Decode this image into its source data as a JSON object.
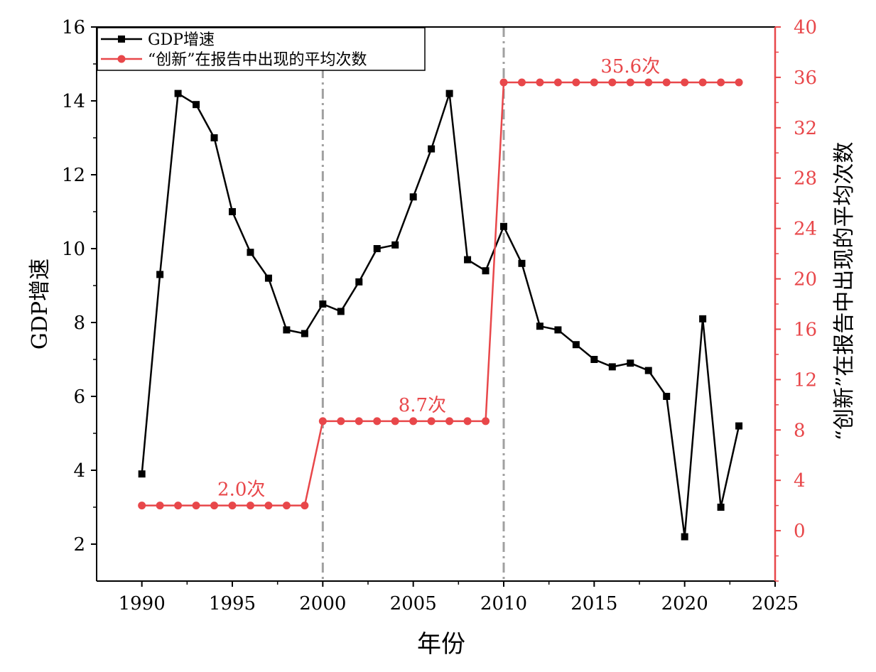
{
  "chart_data": {
    "type": "line",
    "x_axis": {
      "label": "年份",
      "range": [
        1987.5,
        2025
      ],
      "ticks": [
        1990,
        1995,
        2000,
        2005,
        2010,
        2015,
        2020,
        2025
      ]
    },
    "y_left": {
      "label": "GDP增速",
      "range": [
        1,
        16
      ],
      "ticks": [
        2,
        4,
        6,
        8,
        10,
        12,
        14,
        16
      ]
    },
    "y_right": {
      "label": "“创新”在报告中出现的平均次数",
      "range": [
        -4,
        40
      ],
      "ticks": [
        0,
        4,
        8,
        12,
        16,
        20,
        24,
        28,
        32,
        36,
        40
      ]
    },
    "grid": false,
    "legend_position": "top-left",
    "vlines": [
      2000,
      2010
    ],
    "series": [
      {
        "name": "GDP增速",
        "axis": "left",
        "color": "#000000",
        "marker": "square",
        "x": [
          1990,
          1991,
          1992,
          1993,
          1994,
          1995,
          1996,
          1997,
          1998,
          1999,
          2000,
          2001,
          2002,
          2003,
          2004,
          2005,
          2006,
          2007,
          2008,
          2009,
          2010,
          2011,
          2012,
          2013,
          2014,
          2015,
          2016,
          2017,
          2018,
          2019,
          2020,
          2021,
          2022,
          2023
        ],
        "values": [
          3.9,
          9.3,
          14.2,
          13.9,
          13.0,
          11.0,
          9.9,
          9.2,
          7.8,
          7.7,
          8.5,
          8.3,
          9.1,
          10.0,
          10.1,
          11.4,
          12.7,
          14.2,
          9.7,
          9.4,
          10.6,
          9.6,
          7.9,
          7.8,
          7.4,
          7.0,
          6.8,
          6.9,
          6.7,
          6.0,
          2.2,
          8.1,
          3.0,
          5.2
        ]
      },
      {
        "name": "“创新”在报告中出现的平均次数",
        "axis": "right",
        "color": "#e8474a",
        "marker": "circle",
        "x": [
          1990,
          1991,
          1992,
          1993,
          1994,
          1995,
          1996,
          1997,
          1998,
          1999,
          2000,
          2001,
          2002,
          2003,
          2004,
          2005,
          2006,
          2007,
          2008,
          2009,
          2010,
          2011,
          2012,
          2013,
          2014,
          2015,
          2016,
          2017,
          2018,
          2019,
          2020,
          2021,
          2022,
          2023
        ],
        "values": [
          2.0,
          2.0,
          2.0,
          2.0,
          2.0,
          2.0,
          2.0,
          2.0,
          2.0,
          2.0,
          8.7,
          8.7,
          8.7,
          8.7,
          8.7,
          8.7,
          8.7,
          8.7,
          8.7,
          8.7,
          35.6,
          35.6,
          35.6,
          35.6,
          35.6,
          35.6,
          35.6,
          35.6,
          35.6,
          35.6,
          35.6,
          35.6,
          35.6,
          35.6
        ]
      }
    ],
    "annotations": [
      {
        "text": "2.0次",
        "x": 1995.5,
        "y": 2.0,
        "axis": "right"
      },
      {
        "text": "8.7次",
        "x": 2005.5,
        "y": 8.7,
        "axis": "right"
      },
      {
        "text": "35.6次",
        "x": 2017.0,
        "y": 35.6,
        "axis": "right"
      }
    ]
  }
}
